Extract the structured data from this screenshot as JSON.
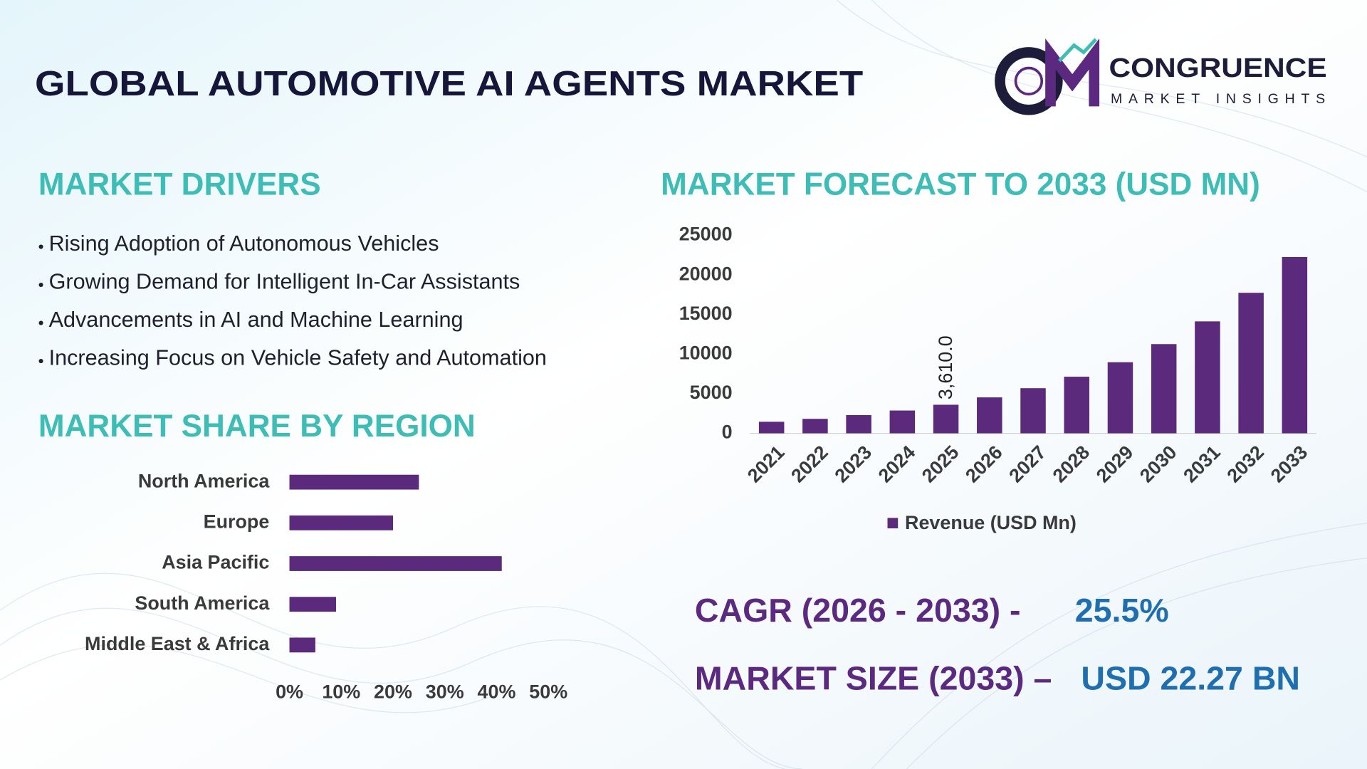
{
  "title": "GLOBAL AUTOMOTIVE AI AGENTS MARKET",
  "logo": {
    "name": "CONGRUENCE",
    "tagline": "MARKET INSIGHTS"
  },
  "drivers": {
    "heading": "MARKET DRIVERS",
    "items": [
      "Rising Adoption of Autonomous Vehicles",
      "Growing Demand for Intelligent In-Car Assistants",
      "Advancements in AI and Machine Learning",
      "Increasing Focus on Vehicle Safety and Automation"
    ]
  },
  "stats": {
    "cagr_label": "CAGR (2026 - 2033) -",
    "cagr_value": "25.5%",
    "size_label": "MARKET SIZE (2033) –",
    "size_value": "USD 22.27 BN"
  },
  "chart_data": [
    {
      "type": "bar",
      "title": "MARKET FORECAST TO 2033 (USD MN)",
      "categories": [
        "2021",
        "2022",
        "2023",
        "2024",
        "2025",
        "2026",
        "2027",
        "2028",
        "2029",
        "2030",
        "2031",
        "2032",
        "2033"
      ],
      "series": [
        {
          "name": "Revenue (USD Mn)",
          "color": "#5c2a7c",
          "values": [
            1460,
            1830,
            2300,
            2880,
            3610,
            4540,
            5700,
            7150,
            8980,
            11270,
            14140,
            17750,
            22270
          ],
          "value_labels": [
            null,
            null,
            null,
            null,
            "3,610.0",
            null,
            null,
            null,
            null,
            null,
            null,
            null,
            null
          ]
        }
      ],
      "ylim": [
        0,
        25000
      ],
      "yticks": [
        0,
        5000,
        10000,
        15000,
        20000,
        25000
      ],
      "grid": false
    },
    {
      "type": "barh",
      "title": "MARKET SHARE BY REGION",
      "categories": [
        "North America",
        "Europe",
        "Asia Pacific",
        "South America",
        "Middle East & Africa"
      ],
      "values": [
        25,
        20,
        41,
        9,
        5
      ],
      "color": "#5c2a7c",
      "xlim": [
        0,
        50
      ],
      "xticks": [
        {
          "value": 0,
          "label": "0%"
        },
        {
          "value": 10,
          "label": "10%"
        },
        {
          "value": 20,
          "label": "20%"
        },
        {
          "value": 30,
          "label": "30%"
        },
        {
          "value": 40,
          "label": "40%"
        },
        {
          "value": 50,
          "label": "50%"
        }
      ],
      "grid": false
    }
  ]
}
